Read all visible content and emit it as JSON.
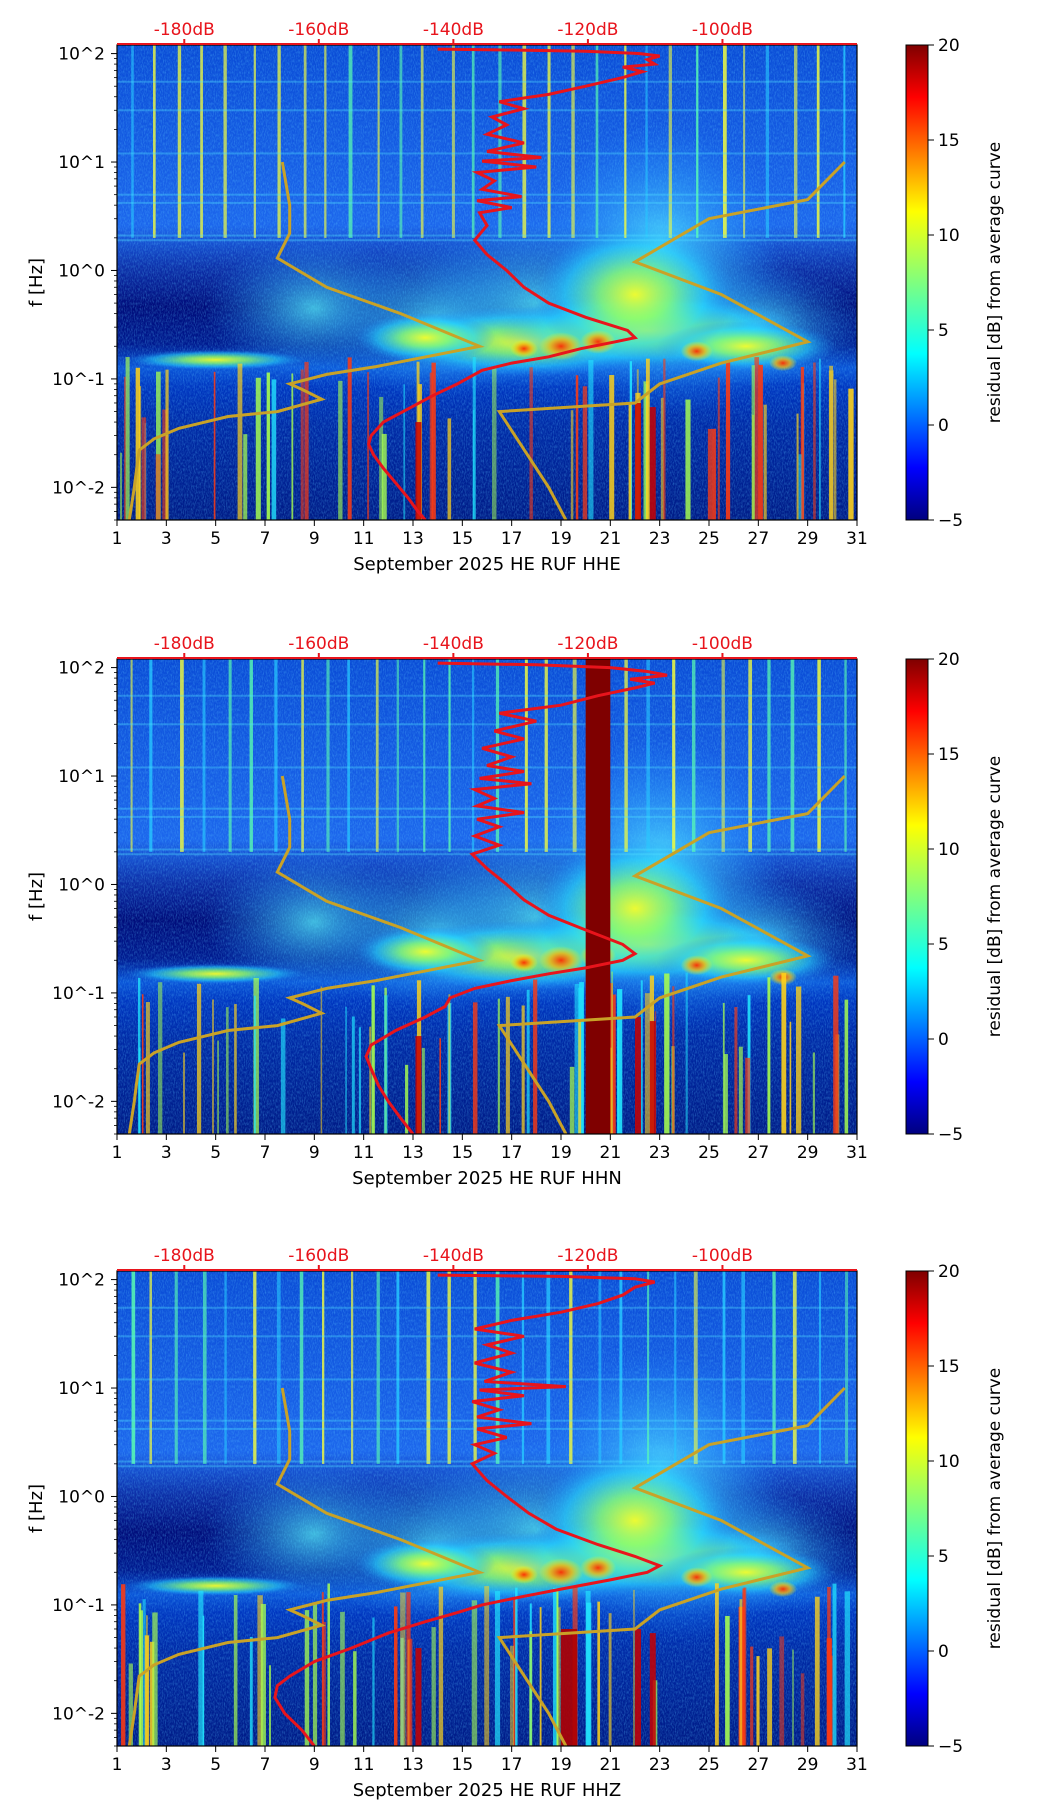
{
  "chart_data": [
    {
      "type": "heatmap",
      "title": "",
      "xlabel": "September 2025 HE RUF  HHE",
      "ylabel": "f [Hz]",
      "x_ticks": [
        "1",
        "3",
        "5",
        "7",
        "9",
        "11",
        "13",
        "15",
        "17",
        "19",
        "21",
        "23",
        "25",
        "27",
        "29",
        "31"
      ],
      "y_ticks": [
        "10^-2",
        "10^-1",
        "10^0",
        "10^1",
        "10^2"
      ],
      "xlim": [
        1,
        31
      ],
      "ylim_hz": [
        0.005,
        120
      ],
      "top_ticks": [
        "-180dB",
        "-160dB",
        "-140dB",
        "-120dB",
        "-100dB"
      ],
      "top_tick_values_db": [
        -180,
        -160,
        -140,
        -120,
        -100
      ],
      "top_axis_db_range": [
        -190,
        -80
      ],
      "colorbar": {
        "label": "residual [dB] from average curve",
        "range": [
          -5,
          20
        ],
        "ticks": [
          "20",
          "15",
          "10",
          "5",
          "0",
          "−5"
        ]
      },
      "noise_model_color": "#c9a227",
      "psd_color": "#e8141c",
      "low_noise_model": [
        [
          1.5,
          0.005
        ],
        [
          1.7,
          0.01
        ],
        [
          1.8,
          0.015
        ],
        [
          1.9,
          0.022
        ],
        [
          2.5,
          0.028
        ],
        [
          3.5,
          0.035
        ],
        [
          5.5,
          0.045
        ],
        [
          7.5,
          0.05
        ],
        [
          9.3,
          0.065
        ],
        [
          8.5,
          0.08
        ],
        [
          8.0,
          0.09
        ],
        [
          9.5,
          0.11
        ],
        [
          11.5,
          0.13
        ],
        [
          15.7,
          0.2
        ],
        [
          12.5,
          0.4
        ],
        [
          9.5,
          0.7
        ],
        [
          7.5,
          1.3
        ],
        [
          8.0,
          2.2
        ],
        [
          8.0,
          4.0
        ],
        [
          7.7,
          10.0
        ]
      ],
      "high_noise_model": [
        [
          19.2,
          0.005
        ],
        [
          18.5,
          0.01
        ],
        [
          16.5,
          0.05
        ],
        [
          22.0,
          0.06
        ],
        [
          23.0,
          0.09
        ],
        [
          25.5,
          0.14
        ],
        [
          29.0,
          0.22
        ],
        [
          25.5,
          0.6
        ],
        [
          22.0,
          1.2
        ],
        [
          25.0,
          3.0
        ],
        [
          29.0,
          4.5
        ],
        [
          30.5,
          10.0
        ]
      ],
      "psd_curve": [
        [
          13.5,
          0.005
        ],
        [
          13.2,
          0.006
        ],
        [
          12.8,
          0.008
        ],
        [
          12.3,
          0.011
        ],
        [
          11.8,
          0.015
        ],
        [
          11.4,
          0.02
        ],
        [
          11.2,
          0.025
        ],
        [
          11.3,
          0.03
        ],
        [
          11.8,
          0.04
        ],
        [
          12.6,
          0.05
        ],
        [
          13.8,
          0.07
        ],
        [
          14.8,
          0.09
        ],
        [
          15.8,
          0.12
        ],
        [
          17.0,
          0.14
        ],
        [
          18.5,
          0.16
        ],
        [
          19.8,
          0.19
        ],
        [
          21.2,
          0.22
        ],
        [
          22.0,
          0.24
        ],
        [
          21.7,
          0.28
        ],
        [
          20.0,
          0.37
        ],
        [
          18.5,
          0.5
        ],
        [
          17.5,
          0.7
        ],
        [
          16.8,
          1.0
        ],
        [
          16.0,
          1.4
        ],
        [
          15.5,
          1.9
        ],
        [
          16.0,
          2.6
        ],
        [
          15.7,
          3.4
        ],
        [
          17.0,
          3.8
        ],
        [
          15.6,
          4.4
        ],
        [
          17.4,
          4.8
        ],
        [
          15.8,
          5.6
        ],
        [
          16.3,
          6.7
        ],
        [
          15.6,
          8.0
        ],
        [
          18.0,
          9.0
        ],
        [
          15.8,
          10.2
        ],
        [
          18.2,
          11.0
        ],
        [
          16.0,
          12.5
        ],
        [
          17.5,
          15.0
        ],
        [
          16.0,
          18.0
        ],
        [
          16.8,
          22.0
        ],
        [
          16.2,
          26.0
        ],
        [
          17.5,
          31.0
        ],
        [
          16.5,
          36.0
        ],
        [
          18.5,
          42.0
        ],
        [
          20.0,
          50.0
        ],
        [
          21.5,
          60.0
        ],
        [
          22.3,
          68.0
        ],
        [
          21.5,
          75.0
        ],
        [
          22.8,
          80.0
        ],
        [
          22.5,
          88.0
        ],
        [
          23.0,
          95.0
        ],
        [
          22.2,
          100.0
        ],
        [
          20.0,
          105.0
        ],
        [
          17.0,
          108.0
        ],
        [
          14.0,
          110.0
        ]
      ],
      "saturated_bands": []
    },
    {
      "type": "heatmap",
      "title": "",
      "xlabel": "September 2025 HE RUF  HHN",
      "ylabel": "f [Hz]",
      "x_ticks": [
        "1",
        "3",
        "5",
        "7",
        "9",
        "11",
        "13",
        "15",
        "17",
        "19",
        "21",
        "23",
        "25",
        "27",
        "29",
        "31"
      ],
      "y_ticks": [
        "10^-2",
        "10^-1",
        "10^0",
        "10^1",
        "10^2"
      ],
      "xlim": [
        1,
        31
      ],
      "ylim_hz": [
        0.005,
        120
      ],
      "top_ticks": [
        "-180dB",
        "-160dB",
        "-140dB",
        "-120dB",
        "-100dB"
      ],
      "top_tick_values_db": [
        -180,
        -160,
        -140,
        -120,
        -100
      ],
      "top_axis_db_range": [
        -190,
        -80
      ],
      "colorbar": {
        "label": "residual [dB] from average curve",
        "range": [
          -5,
          20
        ],
        "ticks": [
          "20",
          "15",
          "10",
          "5",
          "0",
          "−5"
        ]
      },
      "noise_model_color": "#c9a227",
      "psd_color": "#e8141c",
      "low_noise_model": [
        [
          1.5,
          0.005
        ],
        [
          1.7,
          0.01
        ],
        [
          1.8,
          0.015
        ],
        [
          1.9,
          0.022
        ],
        [
          2.5,
          0.028
        ],
        [
          3.5,
          0.035
        ],
        [
          5.5,
          0.045
        ],
        [
          7.5,
          0.05
        ],
        [
          9.3,
          0.065
        ],
        [
          8.5,
          0.08
        ],
        [
          8.0,
          0.09
        ],
        [
          9.5,
          0.11
        ],
        [
          11.5,
          0.13
        ],
        [
          15.7,
          0.2
        ],
        [
          12.5,
          0.4
        ],
        [
          9.5,
          0.7
        ],
        [
          7.5,
          1.3
        ],
        [
          8.0,
          2.2
        ],
        [
          8.0,
          4.0
        ],
        [
          7.7,
          10.0
        ]
      ],
      "high_noise_model": [
        [
          19.2,
          0.005
        ],
        [
          18.5,
          0.01
        ],
        [
          16.5,
          0.05
        ],
        [
          22.0,
          0.06
        ],
        [
          23.0,
          0.09
        ],
        [
          25.5,
          0.14
        ],
        [
          29.0,
          0.22
        ],
        [
          25.5,
          0.6
        ],
        [
          22.0,
          1.2
        ],
        [
          25.0,
          3.0
        ],
        [
          29.0,
          4.5
        ],
        [
          30.5,
          10.0
        ]
      ],
      "psd_curve": [
        [
          13.0,
          0.005
        ],
        [
          12.5,
          0.007
        ],
        [
          12.0,
          0.01
        ],
        [
          11.6,
          0.014
        ],
        [
          11.3,
          0.02
        ],
        [
          11.1,
          0.026
        ],
        [
          11.3,
          0.033
        ],
        [
          12.3,
          0.045
        ],
        [
          13.5,
          0.06
        ],
        [
          14.3,
          0.075
        ],
        [
          14.5,
          0.09
        ],
        [
          15.5,
          0.11
        ],
        [
          17.0,
          0.13
        ],
        [
          18.5,
          0.15
        ],
        [
          20.0,
          0.17
        ],
        [
          21.5,
          0.2
        ],
        [
          22.0,
          0.23
        ],
        [
          21.5,
          0.28
        ],
        [
          20.0,
          0.38
        ],
        [
          18.5,
          0.52
        ],
        [
          17.5,
          0.72
        ],
        [
          16.8,
          1.0
        ],
        [
          16.0,
          1.4
        ],
        [
          15.4,
          1.9
        ],
        [
          16.5,
          2.3
        ],
        [
          15.5,
          2.8
        ],
        [
          16.5,
          3.4
        ],
        [
          15.6,
          4.0
        ],
        [
          17.5,
          4.6
        ],
        [
          15.6,
          5.3
        ],
        [
          16.3,
          6.2
        ],
        [
          15.5,
          7.5
        ],
        [
          17.8,
          8.5
        ],
        [
          15.7,
          9.5
        ],
        [
          17.5,
          11.0
        ],
        [
          16.0,
          12.5
        ],
        [
          17.0,
          15.0
        ],
        [
          15.8,
          18.0
        ],
        [
          17.5,
          22.0
        ],
        [
          16.3,
          26.0
        ],
        [
          18.0,
          32.0
        ],
        [
          16.5,
          38.0
        ],
        [
          19.0,
          45.0
        ],
        [
          20.5,
          55.0
        ],
        [
          22.0,
          65.0
        ],
        [
          22.8,
          72.0
        ],
        [
          21.8,
          78.0
        ],
        [
          23.3,
          85.0
        ],
        [
          22.5,
          92.0
        ],
        [
          21.0,
          100.0
        ],
        [
          18.0,
          106.0
        ],
        [
          14.0,
          110.0
        ]
      ],
      "saturated_bands": [
        [
          20.0,
          21.0
        ]
      ]
    },
    {
      "type": "heatmap",
      "title": "",
      "xlabel": "September 2025 HE RUF  HHZ",
      "ylabel": "f [Hz]",
      "x_ticks": [
        "1",
        "3",
        "5",
        "7",
        "9",
        "11",
        "13",
        "15",
        "17",
        "19",
        "21",
        "23",
        "25",
        "27",
        "29",
        "31"
      ],
      "y_ticks": [
        "10^-2",
        "10^-1",
        "10^0",
        "10^1",
        "10^2"
      ],
      "xlim": [
        1,
        31
      ],
      "ylim_hz": [
        0.005,
        120
      ],
      "top_ticks": [
        "-180dB",
        "-160dB",
        "-140dB",
        "-120dB",
        "-100dB"
      ],
      "top_tick_values_db": [
        -180,
        -160,
        -140,
        -120,
        -100
      ],
      "top_axis_db_range": [
        -190,
        -80
      ],
      "colorbar": {
        "label": "residual [dB] from average curve",
        "range": [
          -5,
          20
        ],
        "ticks": [
          "20",
          "15",
          "10",
          "5",
          "0",
          "−5"
        ]
      },
      "noise_model_color": "#c9a227",
      "psd_color": "#e8141c",
      "low_noise_model": [
        [
          1.5,
          0.005
        ],
        [
          1.7,
          0.01
        ],
        [
          1.8,
          0.015
        ],
        [
          1.9,
          0.022
        ],
        [
          2.5,
          0.028
        ],
        [
          3.5,
          0.035
        ],
        [
          5.5,
          0.045
        ],
        [
          7.5,
          0.05
        ],
        [
          9.3,
          0.065
        ],
        [
          8.5,
          0.08
        ],
        [
          8.0,
          0.09
        ],
        [
          9.5,
          0.11
        ],
        [
          11.5,
          0.13
        ],
        [
          15.7,
          0.2
        ],
        [
          12.5,
          0.4
        ],
        [
          9.5,
          0.7
        ],
        [
          7.5,
          1.3
        ],
        [
          8.0,
          2.2
        ],
        [
          8.0,
          4.0
        ],
        [
          7.7,
          10.0
        ]
      ],
      "high_noise_model": [
        [
          19.2,
          0.005
        ],
        [
          18.5,
          0.01
        ],
        [
          16.5,
          0.05
        ],
        [
          22.0,
          0.06
        ],
        [
          23.0,
          0.09
        ],
        [
          25.5,
          0.14
        ],
        [
          29.0,
          0.22
        ],
        [
          25.5,
          0.6
        ],
        [
          22.0,
          1.2
        ],
        [
          25.0,
          3.0
        ],
        [
          29.0,
          4.5
        ],
        [
          30.5,
          10.0
        ]
      ],
      "psd_curve": [
        [
          9.0,
          0.005
        ],
        [
          8.5,
          0.007
        ],
        [
          7.8,
          0.01
        ],
        [
          7.4,
          0.014
        ],
        [
          7.5,
          0.018
        ],
        [
          8.0,
          0.022
        ],
        [
          9.0,
          0.03
        ],
        [
          10.5,
          0.04
        ],
        [
          12.0,
          0.055
        ],
        [
          13.5,
          0.07
        ],
        [
          14.8,
          0.085
        ],
        [
          15.8,
          0.1
        ],
        [
          17.5,
          0.12
        ],
        [
          19.0,
          0.14
        ],
        [
          21.0,
          0.17
        ],
        [
          22.5,
          0.2
        ],
        [
          23.0,
          0.23
        ],
        [
          22.0,
          0.28
        ],
        [
          20.5,
          0.36
        ],
        [
          18.8,
          0.5
        ],
        [
          17.7,
          0.7
        ],
        [
          16.8,
          1.0
        ],
        [
          16.0,
          1.4
        ],
        [
          15.4,
          2.0
        ],
        [
          16.3,
          2.5
        ],
        [
          15.5,
          3.0
        ],
        [
          16.8,
          3.5
        ],
        [
          15.6,
          4.2
        ],
        [
          17.8,
          4.7
        ],
        [
          15.6,
          5.4
        ],
        [
          16.5,
          6.3
        ],
        [
          15.4,
          7.5
        ],
        [
          17.5,
          8.5
        ],
        [
          15.7,
          9.6
        ],
        [
          19.2,
          10.3
        ],
        [
          15.9,
          11.5
        ],
        [
          17.0,
          14.0
        ],
        [
          15.5,
          17.0
        ],
        [
          17.0,
          21.0
        ],
        [
          16.0,
          25.0
        ],
        [
          17.5,
          30.0
        ],
        [
          15.5,
          35.0
        ],
        [
          17.0,
          42.0
        ],
        [
          19.0,
          50.0
        ],
        [
          20.5,
          60.0
        ],
        [
          21.5,
          72.0
        ],
        [
          22.0,
          85.0
        ],
        [
          22.8,
          95.0
        ],
        [
          22.0,
          102.0
        ],
        [
          19.0,
          107.0
        ],
        [
          14.0,
          110.0
        ]
      ],
      "saturated_bands": []
    }
  ]
}
